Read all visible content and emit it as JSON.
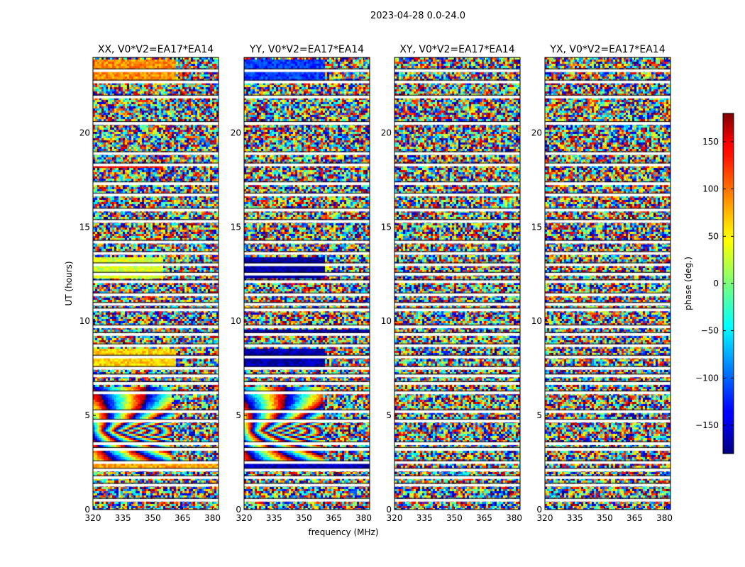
{
  "chart_data": {
    "type": "heatmap",
    "suptitle": "2023-04-28 0.0-24.0",
    "xlabel": "frequency (MHz)",
    "ylabel": "UT (hours)",
    "xlim": [
      320,
      383
    ],
    "ylim": [
      0,
      24
    ],
    "x_ticks": [
      320,
      335,
      350,
      365,
      380
    ],
    "y_ticks": [
      0,
      5,
      10,
      15,
      20
    ],
    "colorbar": {
      "label": "phase (deg.)",
      "range": [
        -180,
        180
      ],
      "ticks": [
        150,
        100,
        50,
        0,
        -50,
        -100,
        -150
      ],
      "tick_labels": [
        "150",
        "100",
        "50",
        "0",
        "−50",
        "−100",
        "−150"
      ],
      "colormap": "jet"
    },
    "panels": [
      {
        "title": "XX, V0*V2=EA17*EA14"
      },
      {
        "title": "YY, V0*V2=EA17*EA14"
      },
      {
        "title": "XY, V0*V2=EA17*EA14"
      },
      {
        "title": "YX, V0*V2=EA17*EA14"
      }
    ],
    "flagged_ut_hours": [
      0.5,
      1.3,
      1.7,
      2.1,
      2.5,
      3.2,
      3.5,
      4.7,
      5.2,
      6.2,
      6.7,
      7.1,
      7.5,
      8.1,
      8.7,
      9.3,
      9.7,
      10.6,
      10.9,
      11.4,
      12.1,
      12.5,
      13.0,
      13.6,
      14.2,
      15.3,
      15.9,
      16.7,
      17.3,
      18.3,
      18.9,
      20.5,
      21.9,
      22.7,
      23.3
    ],
    "coherent_bands": [
      {
        "panel": 0,
        "ut_range": [
          7.5,
          8.5
        ],
        "freq_range": [
          320,
          362
        ],
        "phase_deg": 60
      },
      {
        "panel": 0,
        "ut_range": [
          12.3,
          13.4
        ],
        "freq_range": [
          320,
          355
        ],
        "phase_deg": 30
      },
      {
        "panel": 0,
        "ut_range": [
          22.8,
          23.9
        ],
        "freq_range": [
          320,
          362
        ],
        "phase_deg": 85
      },
      {
        "panel": 0,
        "ut_range": [
          2.1,
          2.4
        ],
        "freq_range": [
          320,
          383
        ],
        "phase_deg": 80
      },
      {
        "panel": 0,
        "ut_range": [
          18.1,
          18.4
        ],
        "freq_range": [
          320,
          355
        ],
        "phase_deg": 140
      },
      {
        "panel": 1,
        "ut_range": [
          7.5,
          8.5
        ],
        "freq_range": [
          320,
          361
        ],
        "phase_deg": -165
      },
      {
        "panel": 1,
        "ut_range": [
          12.3,
          13.4
        ],
        "freq_range": [
          320,
          361
        ],
        "phase_deg": -170
      },
      {
        "panel": 1,
        "ut_range": [
          22.8,
          23.9
        ],
        "freq_range": [
          320,
          361
        ],
        "phase_deg": -115
      },
      {
        "panel": 1,
        "ut_range": [
          2.1,
          2.4
        ],
        "freq_range": [
          320,
          383
        ],
        "phase_deg": -160
      },
      {
        "panel": 1,
        "ut_range": [
          9.3,
          9.6
        ],
        "freq_range": [
          320,
          383
        ],
        "phase_deg": -170
      }
    ],
    "fringe_region": {
      "panels": [
        0,
        1
      ],
      "ut_range": [
        2.5,
        6.5
      ],
      "freq_range": [
        320,
        360
      ]
    }
  }
}
